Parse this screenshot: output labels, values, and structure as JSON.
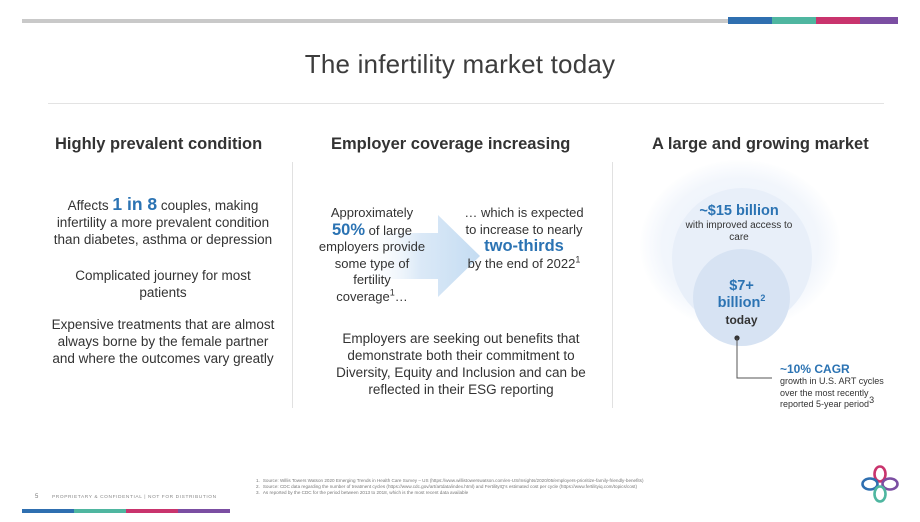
{
  "slide_title": "The infertility market today",
  "colors": {
    "accent_blue": "#2b73b3",
    "bar_blue": "#2f6fb0",
    "bar_teal": "#4fb6a0",
    "bar_pink": "#c9346d",
    "bar_purple": "#7b4ea2"
  },
  "col1": {
    "heading": "Highly prevalent condition",
    "lead_pre": "Affects ",
    "lead_highlight": "1 in 8",
    "lead_post": " couples, making infertility a more prevalent condition than diabetes, asthma or depression",
    "point2": "Complicated journey for most patients",
    "point3": "Expensive treatments that are almost always borne by the female partner and where the outcomes vary greatly"
  },
  "col2": {
    "heading": "Employer coverage increasing",
    "left_pre": "Approximately",
    "left_highlight": "50%",
    "left_post": " of large employers provide some type of fertility coverage",
    "left_sup": "1",
    "left_tail": "…",
    "right_pre": "… which is expected to increase to nearly",
    "right_highlight": "two-thirds",
    "right_post": "by the end of 2022",
    "right_sup": "1",
    "bottom": "Employers are seeking out benefits that demonstrate both their commitment to Diversity, Equity and Inclusion and can be reflected in their ESG reporting"
  },
  "col3": {
    "heading": "A large and growing market",
    "outer_value": "~$15 billion",
    "outer_caption": "with improved access to care",
    "inner_value_line1": "$7+",
    "inner_value_line2": "billion",
    "inner_sup": "2",
    "inner_caption": "today",
    "cagr_value": "~10% CAGR",
    "cagr_caption": "growth in U.S. ART cycles over the most recently reported 5-year period",
    "cagr_sup": "3"
  },
  "footnotes": [
    {
      "num": "1.",
      "text": "Source: Willis Towers Watson 2020 Emerging Trends in Health Care Survey – US (https://www.willistowerswatson.com/en-US/Insights/2020/05/employers-prioritize-family-friendly-benefits)"
    },
    {
      "num": "2.",
      "text": "Source: CDC data regarding the number of treatment cycles (https://www.cdc.gov/art/artdata/index.html) and FertilityIQ's estimated cost per cycle (https://www.fertilityiq.com/topics/cost)"
    },
    {
      "num": "3.",
      "text": "As reported by the CDC for the period between 2013 to 2018, which is the most recent data available"
    }
  ],
  "footer": {
    "page_number": "5",
    "confidential": "PROPRIETARY & CONFIDENTIAL  |  NOT FOR DISTRIBUTION"
  },
  "logo_icon": "four-petal-logo-icon"
}
